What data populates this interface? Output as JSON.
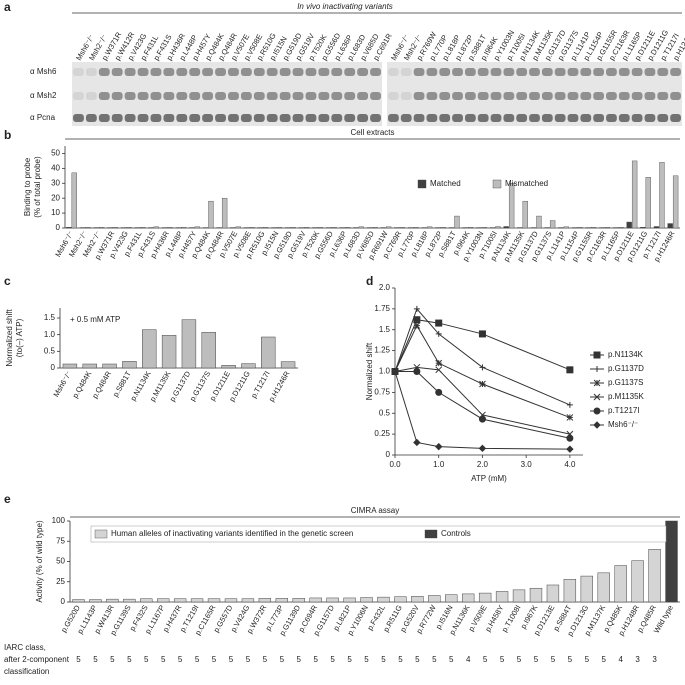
{
  "blot": {
    "panel_label": "a",
    "title": "In vivo inactivating variants",
    "row_labels": [
      "α Msh6",
      "α Msh2",
      "α Pcna"
    ],
    "lanes_left": [
      "Msh6⁻/⁻",
      "Msh2⁻/⁻",
      "p.W371R",
      "p.W412R",
      "p.V423G",
      "p.F431L",
      "p.F431S",
      "p.H436R",
      "p.L448P",
      "p.H457Y",
      "p.Q484K",
      "p.Q484R",
      "p.V507E",
      "p.V508E",
      "p.R510G",
      "p.I515N",
      "p.G519D",
      "p.G519V",
      "p.T520K",
      "p.G556D",
      "p.L636P",
      "p.L683D",
      "p.V685D",
      "p.C691R"
    ],
    "lanes_right": [
      "Msh6⁻/⁻",
      "Msh2⁻/⁻",
      "p.R769W",
      "p.L770P",
      "p.L818P",
      "p.L872P",
      "p.S881T",
      "p.I964K",
      "p.Y1003N",
      "p.T1005I",
      "p.N1134K",
      "p.M1135K",
      "p.G1137D",
      "p.G1137S",
      "p.L1141P",
      "p.L1154P",
      "p.G1155R",
      "p.C1163R",
      "p.L1165P",
      "p.D1211E",
      "p.D1211G",
      "p.T1217I",
      "p.H1246R"
    ]
  },
  "chart_data": [
    {
      "type": "bar",
      "panel_label": "b",
      "title": "Cell extracts",
      "ylabel": [
        "Binding to probe",
        "(% of total probe)"
      ],
      "categories": [
        "Msh6⁻/⁻",
        "Msh2⁻/⁻",
        "Msh2⁻/⁻",
        "p.W371R",
        "p.V423G",
        "p.F431L",
        "p.F431S",
        "p.H436R",
        "p.L448P",
        "p.H457Y",
        "p.Q484K",
        "p.Q484R",
        "p.V507E",
        "p.V508E",
        "p.R510G",
        "p.I515N",
        "p.G519D",
        "p.G519V",
        "p.T520K",
        "p.G556D",
        "p.L636P",
        "p.L683D",
        "p.V685D",
        "p.R691W",
        "p.C769R",
        "p.L770P",
        "p.L818P",
        "p.L872P",
        "p.S881T",
        "p.I964K",
        "p.Y1003N",
        "p.T1005I",
        "p.N1134K",
        "p.M1135K",
        "p.G1137D",
        "p.G1137S",
        "p.L1141P",
        "p.L1154P",
        "p.G1155R",
        "p.C1163R",
        "p.L1165P",
        "p.D1211E",
        "p.D1211G",
        "p.T1217I",
        "p.H1246R"
      ],
      "series": [
        {
          "name": "Matched",
          "color": "#404040",
          "values": [
            0.5,
            0.3,
            0.3,
            0.3,
            0.3,
            0.3,
            0.3,
            0.3,
            0.3,
            0.3,
            0.3,
            0.3,
            0.3,
            0.3,
            0.3,
            0.3,
            0.3,
            0.3,
            0.3,
            0.3,
            0.3,
            0.3,
            0.3,
            0.3,
            0.3,
            0.3,
            0.3,
            0.3,
            0.3,
            0.3,
            0.3,
            0.3,
            1,
            0.3,
            0.3,
            0.3,
            0.3,
            0.3,
            0.3,
            0.3,
            0.3,
            4,
            0.5,
            1,
            3
          ]
        },
        {
          "name": "Mismatched",
          "color": "#bdbdbd",
          "values": [
            37,
            0.5,
            0.5,
            0.5,
            0.5,
            0.5,
            0.8,
            0.5,
            0.5,
            0.8,
            18,
            20,
            0.8,
            0.5,
            0.5,
            0.5,
            0.5,
            0.5,
            0.5,
            0.5,
            0.5,
            0.8,
            0.5,
            0.8,
            0.5,
            0.5,
            0.8,
            0.5,
            8,
            0.5,
            0.5,
            1,
            30,
            18,
            8,
            5,
            0.8,
            0.5,
            0.5,
            0.5,
            0.5,
            45,
            34,
            44,
            35
          ]
        }
      ],
      "ylim": [
        0,
        55
      ],
      "yticks": [
        0,
        10,
        20,
        30,
        40,
        50
      ]
    },
    {
      "type": "bar",
      "panel_label": "c",
      "ylabel": [
        "Normalized shift",
        "(to(–) ATP)"
      ],
      "annotation": "+ 0.5 mM ATP",
      "color": "#bdbdbd",
      "categories": [
        "Msh6⁻/⁻",
        "p.Q484K",
        "p.Q484R",
        "p.S881T",
        "p.N1134K",
        "p.M1135K",
        "p.G1137D",
        "p.G1137S",
        "p.D1211E",
        "p.D1211G",
        "p.T1217I",
        "p.H1246R"
      ],
      "values": [
        0.12,
        0.12,
        0.12,
        0.2,
        1.15,
        0.98,
        1.45,
        1.07,
        0.08,
        0.13,
        0.93,
        0.19
      ],
      "ylim": [
        0,
        1.8
      ],
      "yticks": [
        0,
        0.5,
        {
          "value": 1,
          "label": "1.0"
        },
        1.5
      ]
    },
    {
      "type": "line",
      "panel_label": "d",
      "xlabel": "ATP (mM)",
      "ylabel": "Normalized shift",
      "x": [
        0,
        0.5,
        1,
        2,
        4
      ],
      "series": [
        {
          "name": "p.N1134K",
          "color": "#333333",
          "marker": "square",
          "values": [
            1,
            1.62,
            1.58,
            1.45,
            1.02
          ]
        },
        {
          "name": "p.G1137D",
          "color": "#333333",
          "marker": "plus",
          "values": [
            1,
            1.75,
            1.45,
            1.05,
            0.6
          ]
        },
        {
          "name": "p.G1137S",
          "color": "#333333",
          "marker": "star",
          "values": [
            1,
            1.55,
            1.1,
            0.85,
            0.45
          ]
        },
        {
          "name": "p.M1135K",
          "color": "#333333",
          "marker": "cross",
          "values": [
            1,
            1.05,
            1.02,
            0.48,
            0.25
          ]
        },
        {
          "name": "p.T1217I",
          "color": "#333333",
          "marker": "circle",
          "values": [
            1,
            1.0,
            0.75,
            0.43,
            0.2
          ]
        },
        {
          "name": "Msh6⁻/⁻",
          "color": "#333333",
          "marker": "diamond",
          "values": [
            1,
            0.15,
            0.1,
            0.08,
            0.07
          ]
        }
      ],
      "xlim": [
        0,
        4.3
      ],
      "xticks": [
        {
          "value": 0,
          "label": "0.0"
        },
        {
          "value": 1,
          "label": "1.0"
        },
        {
          "value": 2,
          "label": "2.0"
        },
        {
          "value": 3,
          "label": "3.0"
        },
        {
          "value": 4,
          "label": "4.0"
        }
      ],
      "ylim": [
        0,
        2
      ],
      "yticks": [
        0,
        0.25,
        0.5,
        0.75,
        {
          "value": 1,
          "label": "1.0"
        },
        1.25,
        1.5,
        1.75,
        {
          "value": 2,
          "label": "2.0"
        }
      ]
    },
    {
      "type": "bar",
      "panel_label": "e",
      "title": "CIMRA assay",
      "ylabel": [
        "Activity (% of wild type)"
      ],
      "legend": [
        {
          "label": "Human alleles of inactivating variants identified in the genetic screen",
          "color": "#d4d4d4"
        },
        {
          "label": "Controls",
          "color": "#404040"
        }
      ],
      "categories": [
        "p.G520D",
        "p.L1143P",
        "p.W413R",
        "p.G1139S",
        "p.F432S",
        "p.L1167P",
        "p.H437R",
        "p.T1219I",
        "p.C1165R",
        "p.G557D",
        "p.V424G",
        "p.W372R",
        "p.L773P",
        "p.G1139D",
        "p.C694R",
        "p.G1157D",
        "p.L821P",
        "p.Y1006N",
        "p.F432L",
        "p.R511G",
        "p.G520V",
        "p.R772W",
        "p.I516N",
        "p.N1136K",
        "p.V509E",
        "p.H458Y",
        "p.T1008I",
        "p.I967K",
        "p.D1213E",
        "p.S884T",
        "p.D1213G",
        "p.M1137K",
        "p.Q485K",
        "p.H1248R",
        "p.Q485R",
        "Wild type"
      ],
      "values": [
        3,
        3,
        3.5,
        3.5,
        4,
        4,
        4,
        4,
        4,
        4,
        4,
        4.5,
        4.5,
        4.5,
        5,
        5,
        5,
        5.5,
        6,
        6.5,
        7,
        8,
        9,
        10,
        11,
        13,
        15,
        17,
        21,
        28,
        32,
        36,
        45,
        51,
        65,
        100
      ],
      "colors": [
        "#d4d4d4",
        "#d4d4d4",
        "#d4d4d4",
        "#d4d4d4",
        "#d4d4d4",
        "#d4d4d4",
        "#d4d4d4",
        "#d4d4d4",
        "#d4d4d4",
        "#d4d4d4",
        "#d4d4d4",
        "#d4d4d4",
        "#d4d4d4",
        "#d4d4d4",
        "#d4d4d4",
        "#d4d4d4",
        "#d4d4d4",
        "#d4d4d4",
        "#d4d4d4",
        "#d4d4d4",
        "#d4d4d4",
        "#d4d4d4",
        "#d4d4d4",
        "#d4d4d4",
        "#d4d4d4",
        "#d4d4d4",
        "#d4d4d4",
        "#d4d4d4",
        "#d4d4d4",
        "#d4d4d4",
        "#d4d4d4",
        "#d4d4d4",
        "#d4d4d4",
        "#d4d4d4",
        "#d4d4d4",
        "#404040"
      ],
      "ylim": [
        0,
        100
      ],
      "yticks": [
        0,
        25,
        50,
        75,
        100
      ],
      "row_label": [
        "IARC class,",
        "after 2-component",
        "classification"
      ],
      "row_values": [
        5,
        5,
        5,
        5,
        5,
        5,
        5,
        5,
        5,
        5,
        5,
        5,
        5,
        5,
        5,
        5,
        5,
        5,
        5,
        5,
        5,
        5,
        5,
        4,
        5,
        5,
        5,
        5,
        5,
        5,
        5,
        5,
        4,
        3,
        3,
        null
      ]
    }
  ]
}
